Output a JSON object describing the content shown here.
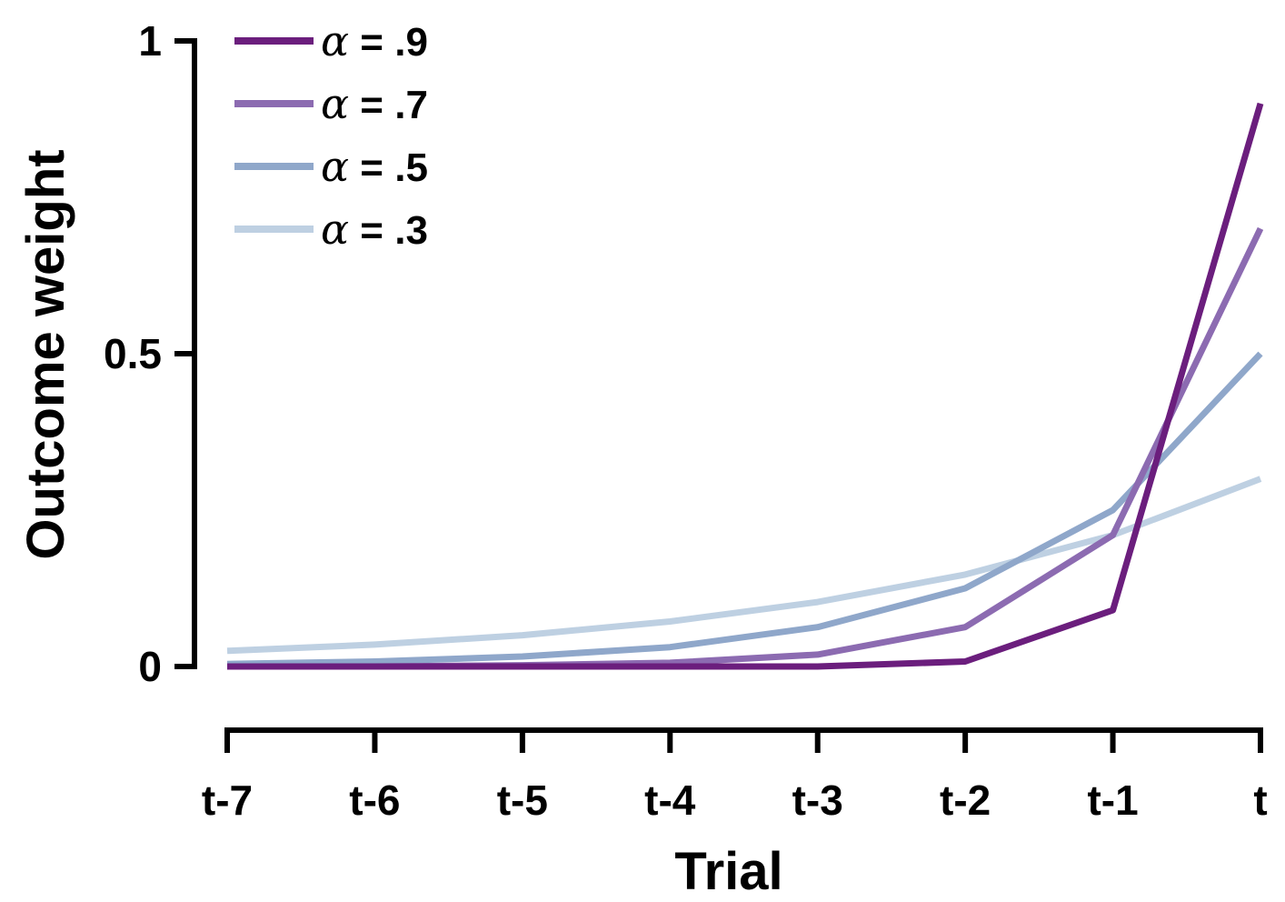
{
  "chart_data": {
    "type": "line",
    "xlabel": "Trial",
    "ylabel": "Outcome weight",
    "categories": [
      "t-7",
      "t-6",
      "t-5",
      "t-4",
      "t-3",
      "t-2",
      "t-1",
      "t"
    ],
    "ylim": [
      0,
      1
    ],
    "yticks": [
      0,
      0.5,
      1
    ],
    "ytick_labels": [
      "0",
      "0.5",
      "1"
    ],
    "grid": false,
    "legend_position": "top-left",
    "series": [
      {
        "name": "α = .9",
        "legend_symbol": "α",
        "legend_text": " = .9",
        "color": "#6b1e7d",
        "values": [
          0.0,
          0.0,
          0.0,
          0.0,
          0.0,
          0.008,
          0.09,
          0.9
        ]
      },
      {
        "name": "α = .7",
        "legend_symbol": "α",
        "legend_text": " = .7",
        "color": "#8c6bb1",
        "values": [
          0.0,
          0.0,
          0.002,
          0.006,
          0.019,
          0.063,
          0.21,
          0.7
        ]
      },
      {
        "name": "α = .5",
        "legend_symbol": "α",
        "legend_text": " = .5",
        "color": "#8fa7ca",
        "values": [
          0.004,
          0.008,
          0.016,
          0.031,
          0.063,
          0.125,
          0.25,
          0.5
        ]
      },
      {
        "name": "α = .3",
        "legend_symbol": "α",
        "legend_text": " = .3",
        "color": "#bed0e2",
        "values": [
          0.025,
          0.035,
          0.05,
          0.072,
          0.103,
          0.147,
          0.21,
          0.3
        ]
      }
    ]
  }
}
